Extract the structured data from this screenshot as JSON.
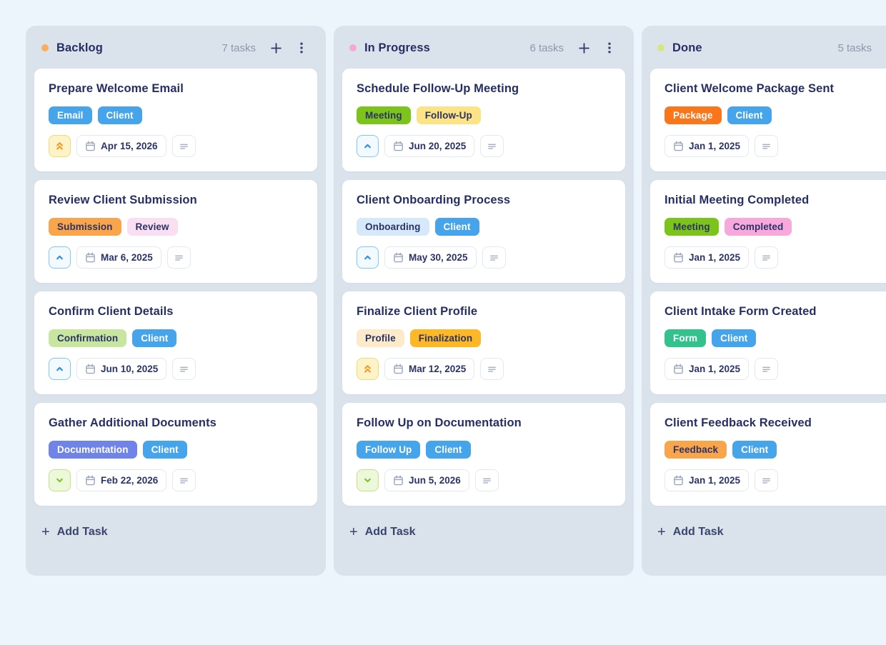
{
  "page": {
    "background": "#EDF5FC",
    "column_background": "#DAE2EC"
  },
  "board": {
    "add_task_label": "Add Task",
    "columns": [
      {
        "name": "Backlog",
        "dot_color": "#F8AE5C",
        "count": "7 tasks",
        "tasks": [
          {
            "title": "Prepare Welcome Email",
            "tags": [
              {
                "label": "Email",
                "bg": "#45A4EA",
                "fg": "#FFFFFF"
              },
              {
                "label": "Client",
                "bg": "#45A4EA",
                "fg": "#FFFFFF"
              }
            ],
            "priority": "high",
            "date": "Apr 15, 2026"
          },
          {
            "title": "Review Client Submission",
            "tags": [
              {
                "label": "Submission",
                "bg": "#F9A54B",
                "fg": "#2B3265"
              },
              {
                "label": "Review",
                "bg": "#F8DFF2",
                "fg": "#2B3265"
              }
            ],
            "priority": "medium",
            "date": "Mar 6, 2025"
          },
          {
            "title": "Confirm Client Details",
            "tags": [
              {
                "label": "Confirmation",
                "bg": "#C9E6A0",
                "fg": "#2B3265"
              },
              {
                "label": "Client",
                "bg": "#45A4EA",
                "fg": "#FFFFFF"
              }
            ],
            "priority": "medium",
            "date": "Jun 10, 2025"
          },
          {
            "title": "Gather Additional Documents",
            "tags": [
              {
                "label": "Documentation",
                "bg": "#7083E8",
                "fg": "#FFFFFF"
              },
              {
                "label": "Client",
                "bg": "#45A4EA",
                "fg": "#FFFFFF"
              }
            ],
            "priority": "low",
            "date": "Feb 22, 2026"
          }
        ]
      },
      {
        "name": "In Progress",
        "dot_color": "#F6A9CE",
        "count": "6 tasks",
        "tasks": [
          {
            "title": "Schedule Follow-Up Meeting",
            "tags": [
              {
                "label": "Meeting",
                "bg": "#7CC41C",
                "fg": "#2B3265"
              },
              {
                "label": "Follow-Up",
                "bg": "#FBE386",
                "fg": "#2B3265"
              }
            ],
            "priority": "medium",
            "date": "Jun 20, 2025"
          },
          {
            "title": "Client Onboarding Process",
            "tags": [
              {
                "label": "Onboarding",
                "bg": "#D5E9FB",
                "fg": "#2B3265"
              },
              {
                "label": "Client",
                "bg": "#45A4EA",
                "fg": "#FFFFFF"
              }
            ],
            "priority": "medium",
            "date": "May 30, 2025"
          },
          {
            "title": "Finalize Client Profile",
            "tags": [
              {
                "label": "Profile",
                "bg": "#FCEACA",
                "fg": "#2B3265"
              },
              {
                "label": "Finalization",
                "bg": "#FCB827",
                "fg": "#2B3265"
              }
            ],
            "priority": "high",
            "date": "Mar 12, 2025"
          },
          {
            "title": "Follow Up on Documentation",
            "tags": [
              {
                "label": "Follow Up",
                "bg": "#45A4EA",
                "fg": "#FFFFFF"
              },
              {
                "label": "Client",
                "bg": "#45A4EA",
                "fg": "#FFFFFF"
              }
            ],
            "priority": "low",
            "date": "Jun 5, 2026"
          }
        ]
      },
      {
        "name": "Done",
        "dot_color": "#D7E77E",
        "count": "5 tasks",
        "tasks": [
          {
            "title": "Client Welcome Package Sent",
            "tags": [
              {
                "label": "Package",
                "bg": "#F9761B",
                "fg": "#FFFFFF"
              },
              {
                "label": "Client",
                "bg": "#45A4EA",
                "fg": "#FFFFFF"
              }
            ],
            "priority": null,
            "date": "Jan 1, 2025"
          },
          {
            "title": "Initial Meeting Completed",
            "tags": [
              {
                "label": "Meeting",
                "bg": "#7CC41C",
                "fg": "#2B3265"
              },
              {
                "label": "Completed",
                "bg": "#F8A9DC",
                "fg": "#2B3265"
              }
            ],
            "priority": null,
            "date": "Jan 1, 2025"
          },
          {
            "title": "Client Intake Form Created",
            "tags": [
              {
                "label": "Form",
                "bg": "#33C28D",
                "fg": "#FFFFFF"
              },
              {
                "label": "Client",
                "bg": "#45A4EA",
                "fg": "#FFFFFF"
              }
            ],
            "priority": null,
            "date": "Jan 1, 2025"
          },
          {
            "title": "Client Feedback Received",
            "tags": [
              {
                "label": "Feedback",
                "bg": "#F9A54B",
                "fg": "#2B3265"
              },
              {
                "label": "Client",
                "bg": "#45A4EA",
                "fg": "#FFFFFF"
              }
            ],
            "priority": null,
            "date": "Jan 1, 2025"
          }
        ]
      }
    ]
  },
  "priority_styles": {
    "high": {
      "bg": "#FDF3C8",
      "border": "#F2DA75",
      "color": "#F59B23",
      "icon": "chevrons-up-icon"
    },
    "medium": {
      "bg": "#F3FAFE",
      "border": "#84C7F2",
      "color": "#2E8FE0",
      "icon": "chevron-up-icon"
    },
    "low": {
      "bg": "#EDF7D9",
      "border": "#C4E189",
      "color": "#7FC32A",
      "icon": "chevron-down-icon"
    }
  }
}
